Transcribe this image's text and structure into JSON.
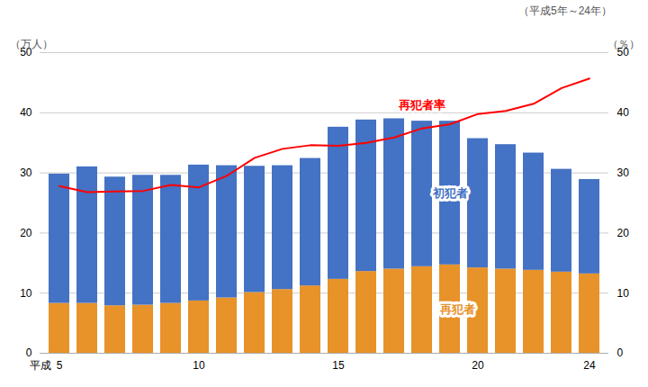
{
  "chart_data": {
    "type": "bar",
    "stacked": true,
    "title": "（平成5年～24年）",
    "xlabel": "平成",
    "ylabel": "（万人）",
    "y2label": "（％）",
    "categories": [
      "5",
      null,
      null,
      null,
      null,
      "10",
      null,
      null,
      null,
      null,
      "15",
      null,
      null,
      null,
      null,
      "20",
      null,
      null,
      null,
      "24"
    ],
    "series": [
      {
        "name": "再犯者",
        "color": "#E8922A",
        "values": [
          8.3,
          8.3,
          7.9,
          8.0,
          8.3,
          8.7,
          9.2,
          10.1,
          10.6,
          11.2,
          12.3,
          13.6,
          14.0,
          14.4,
          14.7,
          14.2,
          14.0,
          13.8,
          13.5,
          13.2
        ]
      },
      {
        "name": "初犯者",
        "color": "#4472C4",
        "values": [
          21.5,
          22.7,
          21.4,
          21.6,
          21.3,
          22.6,
          22.0,
          21.0,
          20.6,
          21.2,
          25.3,
          25.2,
          25.0,
          24.2,
          23.9,
          21.5,
          20.7,
          19.5,
          17.1,
          15.7
        ]
      },
      {
        "name": "再犯者率",
        "type": "line",
        "axis": "y2",
        "color": "#FF0000",
        "values": [
          27.8,
          26.8,
          26.9,
          27.0,
          28.0,
          27.6,
          29.5,
          32.5,
          34.0,
          34.6,
          34.5,
          35.0,
          35.9,
          37.4,
          38.1,
          39.8,
          40.3,
          41.5,
          44.1,
          45.7
        ]
      }
    ],
    "ylim": [
      0,
      50
    ],
    "yticks": [
      0,
      10,
      20,
      30,
      40,
      50
    ],
    "y2lim": [
      0,
      50
    ],
    "y2ticks": [
      0,
      10,
      20,
      30,
      40,
      50
    ],
    "grid": true
  }
}
